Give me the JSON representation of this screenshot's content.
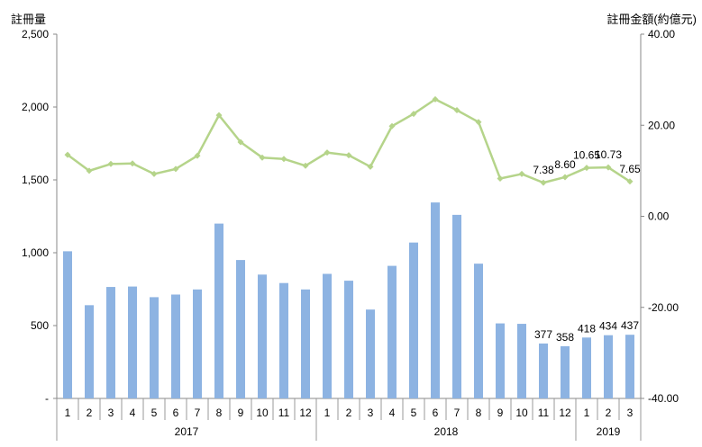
{
  "chart_data": {
    "type": "bar",
    "left_axis_title": "註冊量",
    "right_axis_title": "註冊金額(約億元)",
    "years": [
      {
        "label": "2017",
        "count": 12
      },
      {
        "label": "2018",
        "count": 12
      },
      {
        "label": "2019",
        "count": 3
      }
    ],
    "categories": [
      "1",
      "2",
      "3",
      "4",
      "5",
      "6",
      "7",
      "8",
      "9",
      "10",
      "11",
      "12",
      "1",
      "2",
      "3",
      "4",
      "5",
      "6",
      "7",
      "8",
      "9",
      "10",
      "11",
      "12",
      "1",
      "2",
      "3"
    ],
    "left_ticks": [
      "-",
      "500",
      "1,000",
      "1,500",
      "2,000",
      "2,500"
    ],
    "right_ticks": [
      "-40.00",
      "-20.00",
      "0.00",
      "20.00",
      "40.00"
    ],
    "left_ylim": [
      0,
      2500
    ],
    "right_ylim": [
      -40,
      40
    ],
    "bar_series": {
      "values": [
        1010,
        640,
        765,
        768,
        695,
        713,
        748,
        1200,
        950,
        850,
        792,
        748,
        855,
        808,
        610,
        910,
        1070,
        1345,
        1260,
        925,
        515,
        512,
        377,
        358,
        418,
        434,
        437
      ],
      "color": "#8DB3E2"
    },
    "line_series": {
      "values": [
        13.5,
        10.0,
        11.5,
        11.6,
        9.3,
        10.4,
        13.3,
        22.2,
        16.3,
        12.9,
        12.6,
        11.1,
        14.0,
        13.4,
        10.9,
        19.8,
        22.5,
        25.7,
        23.3,
        20.7,
        8.3,
        9.3,
        7.38,
        8.6,
        10.65,
        10.73,
        7.65
      ],
      "color": "#B5D48A"
    },
    "bar_labels": [
      {
        "index": 22,
        "text": "377"
      },
      {
        "index": 23,
        "text": "358"
      },
      {
        "index": 24,
        "text": "418"
      },
      {
        "index": 25,
        "text": "434"
      },
      {
        "index": 26,
        "text": "437"
      }
    ],
    "line_labels": [
      {
        "index": 22,
        "text": "7.38"
      },
      {
        "index": 23,
        "text": "8.60"
      },
      {
        "index": 24,
        "text": "10.65"
      },
      {
        "index": 25,
        "text": "10.73"
      },
      {
        "index": 26,
        "text": "7.65"
      }
    ]
  }
}
